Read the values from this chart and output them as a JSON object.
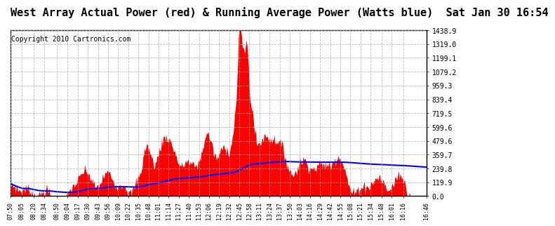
{
  "title": "West Array Actual Power (red) & Running Average Power (Watts blue)  Sat Jan 30 16:54",
  "copyright": "Copyright 2010 Cartronics.com",
  "bg_color": "#ffffff",
  "plot_bg_color": "#ffffff",
  "grid_color": "#aaaaaa",
  "red_color": "#ff0000",
  "blue_color": "#0000ff",
  "yticks": [
    0.0,
    119.9,
    239.8,
    359.7,
    479.6,
    599.6,
    719.5,
    839.4,
    959.3,
    1079.2,
    1199.1,
    1319.0,
    1438.9
  ],
  "ymax": 1438.9,
  "xtick_labels": [
    "07:50",
    "08:05",
    "08:20",
    "08:34",
    "08:50",
    "09:04",
    "09:17",
    "09:30",
    "09:43",
    "09:56",
    "10:09",
    "10:22",
    "10:35",
    "10:48",
    "11:01",
    "11:14",
    "11:27",
    "11:40",
    "11:53",
    "12:06",
    "12:19",
    "12:32",
    "12:45",
    "12:58",
    "13:11",
    "13:24",
    "13:37",
    "13:50",
    "14:03",
    "14:16",
    "14:29",
    "14:42",
    "14:55",
    "15:08",
    "15:21",
    "15:34",
    "15:48",
    "16:01",
    "16:16",
    "16:46"
  ],
  "title_fontsize": 11,
  "copyright_fontsize": 7,
  "tick_fontsize": 7,
  "xtick_fontsize": 6
}
